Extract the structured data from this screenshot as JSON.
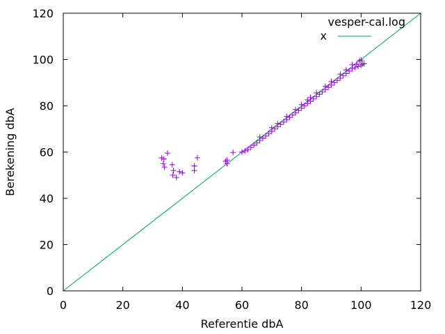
{
  "chart_data": {
    "type": "scatter",
    "xlabel": "Referentie dbA",
    "ylabel": "Berekening dbA",
    "xlim": [
      0,
      120
    ],
    "ylim": [
      0,
      120
    ],
    "x_ticks": [
      "0",
      "20",
      "40",
      "60",
      "80",
      "100",
      "120"
    ],
    "y_ticks": [
      "0",
      "20",
      "40",
      "60",
      "80",
      "100",
      "120"
    ],
    "grid": false,
    "legend_position": "top-right",
    "series": [
      {
        "name": "vesper-cal.log",
        "marker": "+",
        "color": "#9400d3",
        "points": [
          [
            33,
            57.5
          ],
          [
            33.8,
            57
          ],
          [
            33.6,
            55
          ],
          [
            34,
            53.5
          ],
          [
            35,
            59.5
          ],
          [
            36.6,
            54.5
          ],
          [
            37,
            52
          ],
          [
            36.8,
            50
          ],
          [
            38,
            49
          ],
          [
            39,
            51.5
          ],
          [
            40,
            51
          ],
          [
            44,
            54
          ],
          [
            44,
            52
          ],
          [
            45,
            57.5
          ],
          [
            54.5,
            56
          ],
          [
            55,
            56.5
          ],
          [
            55,
            55
          ],
          [
            57,
            59.8
          ],
          [
            60,
            60
          ],
          [
            61,
            60.5
          ],
          [
            62,
            61
          ],
          [
            63,
            62
          ],
          [
            64,
            63
          ],
          [
            65,
            64
          ],
          [
            66,
            65
          ],
          [
            67,
            66
          ],
          [
            68,
            67
          ],
          [
            69,
            68
          ],
          [
            70,
            69
          ],
          [
            71,
            70
          ],
          [
            72,
            71
          ],
          [
            73,
            72
          ],
          [
            74,
            73
          ],
          [
            75,
            74
          ],
          [
            76,
            75
          ],
          [
            77,
            76
          ],
          [
            78,
            77
          ],
          [
            79,
            78
          ],
          [
            80,
            79
          ],
          [
            81,
            80
          ],
          [
            82,
            81
          ],
          [
            83,
            82
          ],
          [
            84,
            83
          ],
          [
            85,
            84
          ],
          [
            86,
            85
          ],
          [
            87,
            86
          ],
          [
            88,
            87
          ],
          [
            89,
            88
          ],
          [
            90,
            89
          ],
          [
            91,
            90
          ],
          [
            92,
            91
          ],
          [
            93,
            92
          ],
          [
            94,
            93
          ],
          [
            95,
            94
          ],
          [
            96,
            95
          ],
          [
            97,
            96
          ],
          [
            98,
            96.5
          ],
          [
            99,
            97
          ],
          [
            100,
            97.5
          ],
          [
            100.5,
            98
          ],
          [
            101,
            98.2
          ],
          [
            100,
            99.8
          ],
          [
            98.5,
            98
          ],
          [
            95,
            95.5
          ],
          [
            90,
            90.5
          ],
          [
            85,
            85.6
          ],
          [
            80,
            80.5
          ],
          [
            75,
            75.4
          ],
          [
            70,
            70.5
          ],
          [
            66,
            66.5
          ],
          [
            72,
            72.3
          ],
          [
            78,
            78.3
          ],
          [
            83,
            83.6
          ],
          [
            88,
            88.4
          ],
          [
            93,
            93.6
          ],
          [
            97,
            97.8
          ],
          [
            99.5,
            99.5
          ],
          [
            82,
            82.5
          ]
        ]
      },
      {
        "name": "x",
        "line": true,
        "color": "#009e73",
        "x": [
          0,
          120
        ],
        "y": [
          0,
          120
        ]
      }
    ]
  }
}
